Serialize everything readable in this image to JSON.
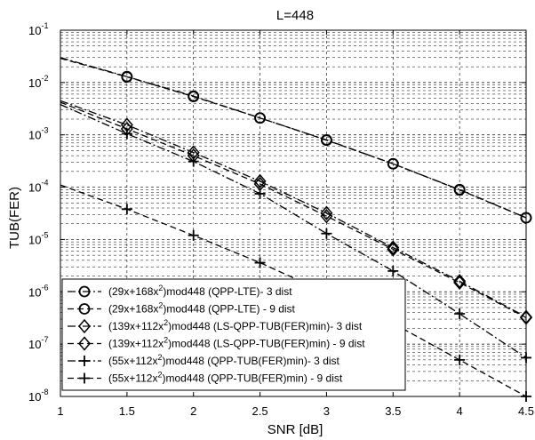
{
  "chart_data": {
    "type": "line",
    "title": "L=448",
    "xlabel": "SNR [dB]",
    "ylabel": "TUB(FER)",
    "xlim": [
      1,
      4.5
    ],
    "ylim_exp": [
      -8,
      -1
    ],
    "y_scale": "log",
    "grid": "major and minor (dashed)",
    "x_ticks": [
      1,
      1.5,
      2,
      2.5,
      3,
      3.5,
      4,
      4.5
    ],
    "x_tick_labels": [
      "1",
      "1.5",
      "2",
      "2.5",
      "3",
      "3.5",
      "4",
      "4.5"
    ],
    "y_tick_exps": [
      -8,
      -7,
      -6,
      -5,
      -4,
      -3,
      -2,
      -1
    ],
    "y_tick_base": "10",
    "legend_location": "bottom-left",
    "marker_x": [
      1.5,
      2,
      2.5,
      3,
      3.5,
      4,
      4.5
    ],
    "series": [
      {
        "name_parts": [
          "(29x+168x",
          "2",
          ")mod448 (QPP-LTE)- 3 dist"
        ],
        "marker": "circle",
        "linestyle": "dash-dot",
        "x": [
          1,
          1.5,
          2,
          2.5,
          3,
          3.5,
          4,
          4.5
        ],
        "y": [
          0.03,
          0.013,
          0.0055,
          0.0021,
          0.0008,
          0.00028,
          9e-05,
          2.6e-05
        ]
      },
      {
        "name_parts": [
          "(29x+168x",
          "2",
          ")mod448 (QPP-LTE) - 9 dist"
        ],
        "marker": "circle",
        "linestyle": "dash",
        "x": [
          1,
          1.5,
          2,
          2.5,
          3,
          3.5,
          4,
          4.5
        ],
        "y": [
          0.029,
          0.0128,
          0.0054,
          0.0021,
          0.00079,
          0.00028,
          8.9e-05,
          2.6e-05
        ]
      },
      {
        "name_parts": [
          "(139x+112x",
          "2",
          ")mod448 (LS-QPP-TUB(FER)min)- 3 dist"
        ],
        "marker": "diamond",
        "linestyle": "dash-dot",
        "x": [
          1,
          1.5,
          2,
          2.5,
          3,
          3.5,
          4,
          4.5
        ],
        "y": [
          0.0045,
          0.00155,
          0.00046,
          0.00013,
          3.2e-05,
          7e-06,
          1.6e-06,
          3.3e-07
        ]
      },
      {
        "name_parts": [
          "(139x+112x",
          "2",
          ")mod448 (LS-QPP-TUB(FER)min) - 9 dist"
        ],
        "marker": "diamond",
        "linestyle": "dash",
        "x": [
          1,
          1.5,
          2,
          2.5,
          3,
          3.5,
          4,
          4.5
        ],
        "y": [
          0.0042,
          0.0013,
          0.0004,
          0.000115,
          2.8e-05,
          6.5e-06,
          1.5e-06,
          3.2e-07
        ]
      },
      {
        "name_parts": [
          "(55x+112x",
          "2",
          ")mod448 (QPP-TUB(FER)min)- 3 dist"
        ],
        "marker": "plus",
        "linestyle": "dash-dot",
        "x": [
          1,
          1.5,
          2,
          2.5,
          3,
          3.5,
          4,
          4.5
        ],
        "y": [
          0.0038,
          0.00105,
          0.00031,
          7.5e-05,
          1.3e-05,
          2.5e-06,
          3.8e-07,
          5.5e-08
        ]
      },
      {
        "name_parts": [
          "(55x+112x",
          "2",
          ")mod448 (QPP-TUB(FER)min) - 9 dist"
        ],
        "marker": "plus",
        "linestyle": "dash",
        "x": [
          1,
          1.5,
          2,
          2.5,
          3,
          3.5,
          4,
          4.5
        ],
        "y": [
          0.00011,
          3.8e-05,
          1.2e-05,
          3.6e-06,
          9.5e-07,
          2.5e-07,
          5e-08,
          1e-08
        ]
      }
    ]
  }
}
